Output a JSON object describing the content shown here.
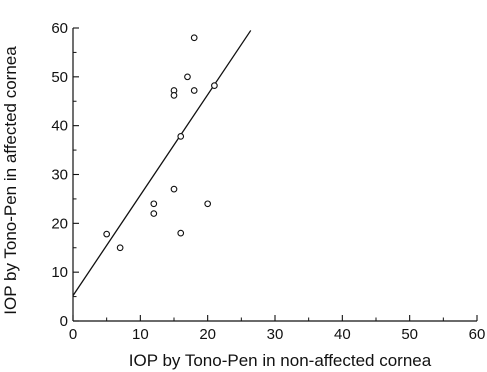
{
  "chart_data": {
    "type": "scatter",
    "title": "",
    "xlabel": "IOP by Tono-Pen in non-affected cornea",
    "ylabel": "IOP by Tono-Pen in affected cornea",
    "xlim": [
      0,
      60
    ],
    "ylim": [
      0,
      60
    ],
    "xticks": [
      0,
      10,
      20,
      30,
      40,
      50,
      60
    ],
    "yticks": [
      0,
      10,
      20,
      30,
      40,
      50,
      60
    ],
    "grid": false,
    "legend": "none",
    "marker": "open-circle",
    "series": [
      {
        "points": [
          {
            "x": 5,
            "y": 17.8
          },
          {
            "x": 7,
            "y": 15
          },
          {
            "x": 12,
            "y": 24
          },
          {
            "x": 12,
            "y": 22
          },
          {
            "x": 15,
            "y": 47.2
          },
          {
            "x": 15,
            "y": 46.2
          },
          {
            "x": 15,
            "y": 27
          },
          {
            "x": 16,
            "y": 37.8
          },
          {
            "x": 16,
            "y": 18
          },
          {
            "x": 17,
            "y": 50
          },
          {
            "x": 18,
            "y": 58
          },
          {
            "x": 18,
            "y": 47.2
          },
          {
            "x": 20,
            "y": 24
          },
          {
            "x": 21,
            "y": 48.2
          }
        ]
      }
    ],
    "fit_line": {
      "x": [
        0,
        26.4
      ],
      "y": [
        5.2,
        59.5
      ]
    }
  },
  "colors": {
    "ink": "#111111",
    "marker_fill": "#ffffff"
  }
}
